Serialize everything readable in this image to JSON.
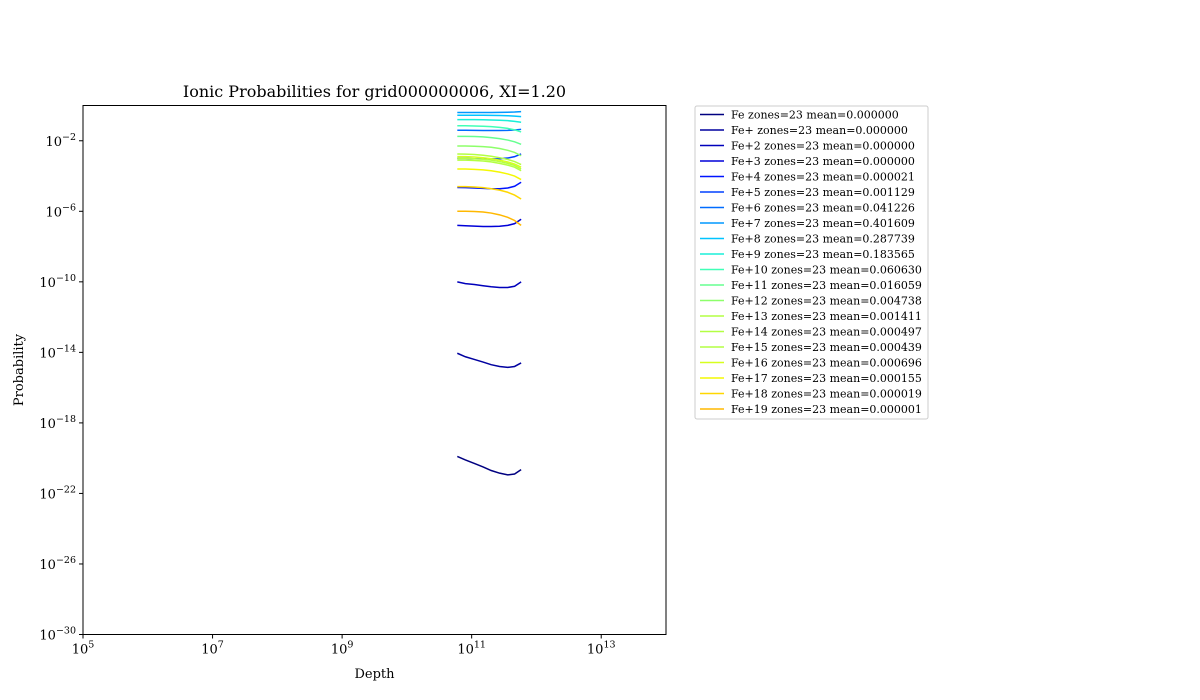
{
  "chart_data": {
    "type": "line",
    "title": "Ionic Probabilities for grid000000006, XI=1.20",
    "xlabel": "Depth",
    "ylabel": "Probability",
    "x_scale": "log",
    "y_scale": "log",
    "xlim": [
      100000.0,
      100000000000000.0
    ],
    "ylim": [
      1e-30,
      1.0
    ],
    "x_ticks": [
      {
        "value": 100000.0,
        "base": "10",
        "exp": "5"
      },
      {
        "value": 10000000.0,
        "base": "10",
        "exp": "7"
      },
      {
        "value": 1000000000.0,
        "base": "10",
        "exp": "9"
      },
      {
        "value": 100000000000.0,
        "base": "10",
        "exp": "11"
      },
      {
        "value": 10000000000000.0,
        "base": "10",
        "exp": "13"
      }
    ],
    "y_ticks": [
      {
        "value": 1e-30,
        "base": "10",
        "exp": "−30"
      },
      {
        "value": 1e-26,
        "base": "10",
        "exp": "−26"
      },
      {
        "value": 1e-22,
        "base": "10",
        "exp": "−22"
      },
      {
        "value": 1e-18,
        "base": "10",
        "exp": "−18"
      },
      {
        "value": 1e-14,
        "base": "10",
        "exp": "−14"
      },
      {
        "value": 1e-10,
        "base": "10",
        "exp": "−10"
      },
      {
        "value": 1e-06,
        "base": "10",
        "exp": "−6"
      },
      {
        "value": 0.01,
        "base": "10",
        "exp": "−2"
      }
    ],
    "grid": false,
    "legend_position": "outside right",
    "x": [
      60000000000.0,
      80000000000.0,
      110000000000.0,
      150000000000.0,
      200000000000.0,
      270000000000.0,
      360000000000.0,
      460000000000.0,
      580000000000.0
    ],
    "series": [
      {
        "name": "Fe zones=23 mean=0.000000",
        "color": "#000080",
        "log10_values": [
          -19.9,
          -20.1,
          -20.3,
          -20.5,
          -20.7,
          -20.85,
          -20.95,
          -20.9,
          -20.65
        ]
      },
      {
        "name": "Fe+ zones=23 mean=0.000000",
        "color": "#00009f",
        "log10_values": [
          -14.05,
          -14.25,
          -14.4,
          -14.55,
          -14.7,
          -14.8,
          -14.85,
          -14.8,
          -14.6
        ]
      },
      {
        "name": "Fe+2 zones=23 mean=0.000000",
        "color": "#0000bb",
        "log10_values": [
          -10.0,
          -10.1,
          -10.15,
          -10.22,
          -10.28,
          -10.32,
          -10.32,
          -10.25,
          -10.0
        ]
      },
      {
        "name": "Fe+3 zones=23 mean=0.000000",
        "color": "#0000d8",
        "log10_values": [
          -6.8,
          -6.82,
          -6.84,
          -6.86,
          -6.86,
          -6.85,
          -6.8,
          -6.7,
          -6.45
        ]
      },
      {
        "name": "Fe+4 zones=23 mean=0.000021",
        "color": "#0014ff",
        "log10_values": [
          -4.65,
          -4.66,
          -4.68,
          -4.7,
          -4.72,
          -4.72,
          -4.68,
          -4.58,
          -4.35
        ]
      },
      {
        "name": "Fe+5 zones=23 mean=0.001129",
        "color": "#0040ff",
        "log10_values": [
          -3.0,
          -3.0,
          -3.02,
          -3.03,
          -3.03,
          -3.02,
          -2.98,
          -2.9,
          -2.75
        ]
      },
      {
        "name": "Fe+6 zones=23 mean=0.041226",
        "color": "#006cff",
        "log10_values": [
          -1.4,
          -1.4,
          -1.41,
          -1.42,
          -1.42,
          -1.42,
          -1.41,
          -1.39,
          -1.35
        ]
      },
      {
        "name": "Fe+7 zones=23 mean=0.401609",
        "color": "#0098ff",
        "log10_values": [
          -0.4,
          -0.4,
          -0.4,
          -0.4,
          -0.4,
          -0.39,
          -0.38,
          -0.37,
          -0.35
        ]
      },
      {
        "name": "Fe+8 zones=23 mean=0.287739",
        "color": "#00c4ff",
        "log10_values": [
          -0.55,
          -0.55,
          -0.55,
          -0.55,
          -0.56,
          -0.57,
          -0.58,
          -0.6,
          -0.63
        ]
      },
      {
        "name": "Fe+9 zones=23 mean=0.183565",
        "color": "#1aefd8",
        "log10_values": [
          -0.8,
          -0.8,
          -0.8,
          -0.81,
          -0.82,
          -0.84,
          -0.86,
          -0.9,
          -0.95
        ]
      },
      {
        "name": "Fe+10 zones=23 mean=0.060630",
        "color": "#40ffb7",
        "log10_values": [
          -1.15,
          -1.15,
          -1.16,
          -1.18,
          -1.2,
          -1.24,
          -1.3,
          -1.38,
          -1.5
        ]
      },
      {
        "name": "Fe+11 zones=23 mean=0.016059",
        "color": "#66ff90",
        "log10_values": [
          -1.75,
          -1.75,
          -1.76,
          -1.78,
          -1.82,
          -1.88,
          -1.96,
          -2.06,
          -2.2
        ]
      },
      {
        "name": "Fe+12 zones=23 mean=0.004738",
        "color": "#8dff6a",
        "log10_values": [
          -2.3,
          -2.3,
          -2.31,
          -2.33,
          -2.37,
          -2.44,
          -2.54,
          -2.66,
          -2.85
        ]
      },
      {
        "name": "Fe+13 zones=23 mean=0.001411",
        "color": "#b3ff43",
        "log10_values": [
          -2.75,
          -2.76,
          -2.78,
          -2.82,
          -2.88,
          -2.96,
          -3.06,
          -3.18,
          -3.35
        ]
      },
      {
        "name": "Fe+14 zones=23 mean=0.000497",
        "color": "#b3ff43",
        "log10_values": [
          -3.0,
          -3.0,
          -3.02,
          -3.05,
          -3.1,
          -3.18,
          -3.28,
          -3.4,
          -3.6
        ]
      },
      {
        "name": "Fe+15 zones=23 mean=0.000439",
        "color": "#b3ff43",
        "log10_values": [
          -3.1,
          -3.1,
          -3.12,
          -3.15,
          -3.2,
          -3.28,
          -3.38,
          -3.5,
          -3.7
        ]
      },
      {
        "name": "Fe+16 zones=23 mean=0.000696",
        "color": "#d7ff1e",
        "log10_values": [
          -2.9,
          -2.9,
          -2.92,
          -2.96,
          -3.02,
          -3.1,
          -3.2,
          -3.32,
          -3.5
        ]
      },
      {
        "name": "Fe+17 zones=23 mean=0.000155",
        "color": "#f4f802",
        "log10_values": [
          -3.6,
          -3.6,
          -3.62,
          -3.65,
          -3.7,
          -3.78,
          -3.88,
          -4.0,
          -4.2
        ]
      },
      {
        "name": "Fe+18 zones=23 mean=0.000019",
        "color": "#ffd700",
        "log10_values": [
          -4.6,
          -4.6,
          -4.62,
          -4.66,
          -4.72,
          -4.8,
          -4.92,
          -5.08,
          -5.3
        ]
      },
      {
        "name": "Fe+19 zones=23 mean=0.000001",
        "color": "#ffb800",
        "log10_values": [
          -6.0,
          -6.0,
          -6.01,
          -6.04,
          -6.1,
          -6.2,
          -6.34,
          -6.52,
          -6.8
        ]
      }
    ]
  }
}
